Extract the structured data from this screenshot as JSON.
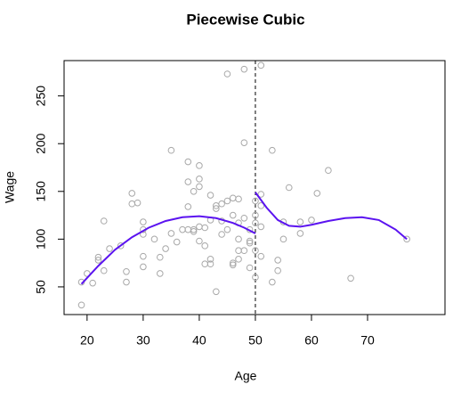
{
  "chart_data": {
    "type": "scatter",
    "title": "Piecewise Cubic",
    "x_label": "Age",
    "y_label": "Wage",
    "xlim": [
      15.9,
      83.8
    ],
    "ylim": [
      21,
      287
    ],
    "xticks": [
      20,
      30,
      40,
      50,
      60,
      70
    ],
    "yticks": [
      50,
      100,
      150,
      200,
      250
    ],
    "point_color": "#a8a8a8",
    "x": [
      19,
      19,
      20,
      21,
      22,
      22,
      23,
      23,
      24,
      26,
      27,
      27,
      28,
      28,
      29,
      30,
      30,
      30,
      30,
      30,
      32,
      33,
      33,
      34,
      35,
      35,
      36,
      37,
      38,
      38,
      38,
      38,
      39,
      39,
      39,
      40,
      40,
      40,
      40,
      40,
      41,
      41,
      41,
      42,
      42,
      42,
      42,
      43,
      43,
      43,
      44,
      44,
      44,
      45,
      45,
      45,
      46,
      46,
      46,
      46,
      47,
      47,
      47,
      47,
      47,
      48,
      48,
      48,
      48,
      49,
      49,
      49,
      49,
      50,
      50,
      50,
      50,
      50,
      51,
      51,
      51,
      51,
      51,
      53,
      53,
      54,
      54,
      55,
      55,
      56,
      58,
      58,
      60,
      61,
      63,
      67,
      77
    ],
    "values": [
      31,
      55,
      64,
      54,
      78,
      81,
      67,
      119,
      90,
      93,
      55,
      66,
      148,
      137,
      138,
      118,
      110,
      105,
      82,
      71,
      100,
      81,
      64,
      90,
      193,
      106,
      97,
      110,
      181,
      160,
      134,
      110,
      150,
      110,
      108,
      177,
      163,
      155,
      113,
      98,
      112,
      93,
      74,
      146,
      120,
      79,
      74,
      135,
      132,
      45,
      119,
      137,
      105,
      273,
      140,
      110,
      143,
      125,
      75,
      73,
      142,
      117,
      100,
      88,
      79,
      278,
      201,
      122,
      88,
      110,
      96,
      70,
      98,
      60,
      125,
      117,
      88,
      140,
      282,
      147,
      135,
      113,
      82,
      193,
      55,
      78,
      67,
      100,
      118,
      154,
      106,
      118,
      120,
      148,
      172,
      59,
      100
    ],
    "cutpoint": 50,
    "series": [
      {
        "color": "#5b13f0",
        "x": [
          19,
          22,
          25,
          28,
          31,
          34,
          37,
          40,
          43,
          46,
          48,
          50
        ],
        "values": [
          53,
          72,
          89,
          102,
          112,
          119,
          123,
          124,
          122,
          117,
          112,
          106
        ]
      },
      {
        "color": "#5b13f0",
        "x": [
          50,
          52,
          54,
          56,
          58,
          60,
          63,
          66,
          69,
          72,
          75,
          77
        ],
        "values": [
          149,
          133,
          120,
          114,
          113,
          115,
          119,
          122,
          123,
          120,
          110,
          100
        ]
      }
    ]
  }
}
